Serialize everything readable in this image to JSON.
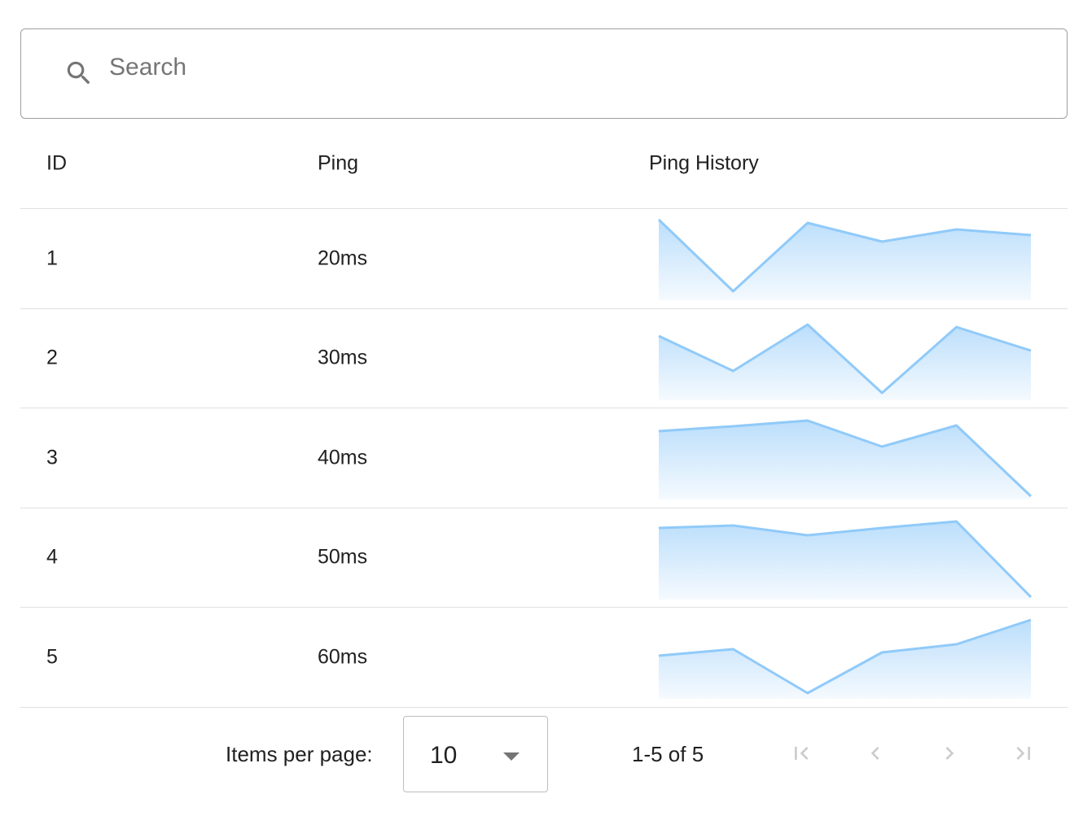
{
  "search": {
    "placeholder": "Search",
    "value": ""
  },
  "table": {
    "columns": [
      "ID",
      "Ping",
      "Ping History"
    ],
    "rows": [
      {
        "id": "1",
        "ping": "20ms",
        "history": [
          98,
          10,
          94,
          71,
          86,
          79
        ]
      },
      {
        "id": "2",
        "ping": "30ms",
        "history": [
          78,
          35,
          92,
          8,
          89,
          60
        ]
      },
      {
        "id": "3",
        "ping": "40ms",
        "history": [
          83,
          89,
          96,
          64,
          90,
          3
        ]
      },
      {
        "id": "4",
        "ping": "50ms",
        "history": [
          87,
          90,
          78,
          87,
          95,
          2
        ]
      },
      {
        "id": "5",
        "ping": "60ms",
        "history": [
          52,
          60,
          6,
          56,
          66,
          96
        ]
      }
    ]
  },
  "pagination": {
    "items_per_page_label": "Items per page:",
    "items_per_page": "10",
    "range": "1-5 of 5",
    "icons": [
      "first-page-icon",
      "previous-page-icon",
      "next-page-icon",
      "last-page-icon"
    ]
  },
  "colors": {
    "sparkline_stroke": "#90caf9",
    "sparkline_fill": "#bbdefb",
    "icon_disabled": "#cccccc"
  }
}
